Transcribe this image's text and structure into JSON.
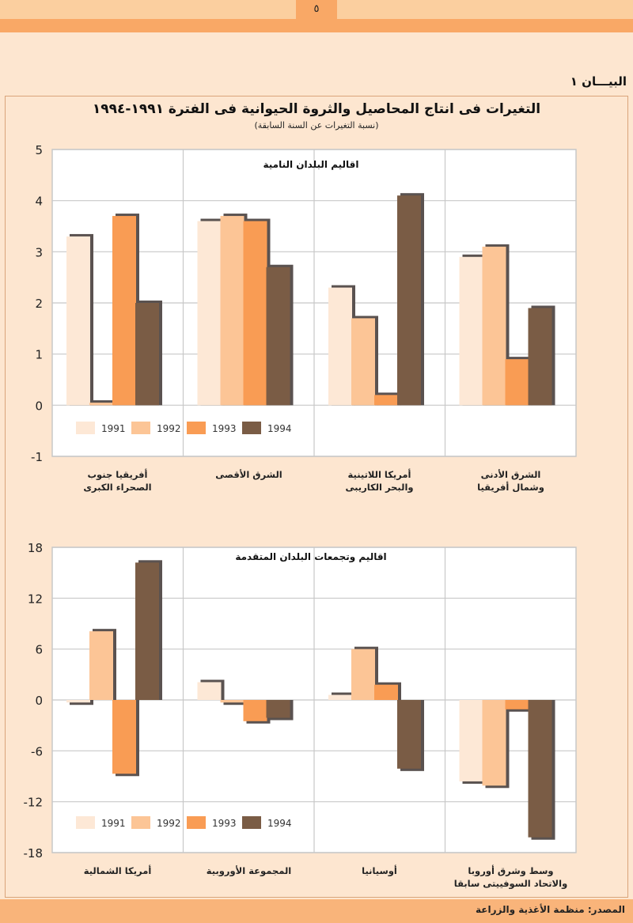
{
  "header": {
    "page_number": "٥"
  },
  "figure_label": "البيـــان ١",
  "title": "التغيرات فى انتاج المحاصيل والثروة الحيوانية فى الفترة ١٩٩١-١٩٩٤",
  "subtitle": "(نسبة التغيرات عن السنة السابقة)",
  "source": "المصدر: منظمة الأغذية والزراعة",
  "colors": {
    "1991": "#fde8d6",
    "1992": "#fcc596",
    "1993": "#f99c54",
    "1994": "#7a5c45",
    "shadow": "#5a5250",
    "grid": "#c8c8c8"
  },
  "chart_data": [
    {
      "type": "bar",
      "title": "اقاليم البلدان النامية",
      "xlabel": "",
      "ylabel": "",
      "ylim": [
        -1,
        5
      ],
      "yticks": [
        5,
        4,
        3,
        2,
        1,
        0,
        -1
      ],
      "grid": true,
      "legend": {
        "entries": [
          "1991",
          "1992",
          "1993",
          "1994"
        ],
        "placement": "bottom-left"
      },
      "categories": [
        "أفريقيا جنوب\nالصحراء الكبرى",
        "الشرق الأقصى",
        "أمريكا اللاتينية\nوالبحر الكاريبى",
        "الشرق الأدنى\nوشمال أفريقيا"
      ],
      "series": [
        {
          "name": "1991",
          "values": [
            3.3,
            3.6,
            2.3,
            2.9
          ]
        },
        {
          "name": "1992",
          "values": [
            0.05,
            3.7,
            1.7,
            3.1
          ]
        },
        {
          "name": "1993",
          "values": [
            3.7,
            3.6,
            0.2,
            0.9
          ]
        },
        {
          "name": "1994",
          "values": [
            2.0,
            2.7,
            4.1,
            1.9
          ]
        }
      ]
    },
    {
      "type": "bar",
      "title": "اقاليم وتجمعات البلدان المتقدمة",
      "xlabel": "",
      "ylabel": "",
      "ylim": [
        -18,
        18
      ],
      "yticks": [
        18,
        12,
        6,
        0,
        -6,
        -12,
        -18
      ],
      "grid": true,
      "legend": {
        "entries": [
          "1991",
          "1992",
          "1993",
          "1994"
        ],
        "placement": "bottom-left"
      },
      "categories": [
        "أمريكا الشمالية",
        "المجموعة الأوروبية",
        "أوسيانيا",
        "وسط وشرق أوروبا\nوالاتحاد السوفييتى سابقا"
      ],
      "series": [
        {
          "name": "1991",
          "values": [
            -0.3,
            2.1,
            0.6,
            -9.6
          ]
        },
        {
          "name": "1992",
          "values": [
            8.1,
            -0.3,
            6.0,
            -10.1
          ]
        },
        {
          "name": "1993",
          "values": [
            -8.7,
            -2.5,
            1.8,
            -1.1
          ]
        },
        {
          "name": "1994",
          "values": [
            16.2,
            -2.1,
            -8.1,
            -16.2
          ]
        }
      ]
    }
  ]
}
